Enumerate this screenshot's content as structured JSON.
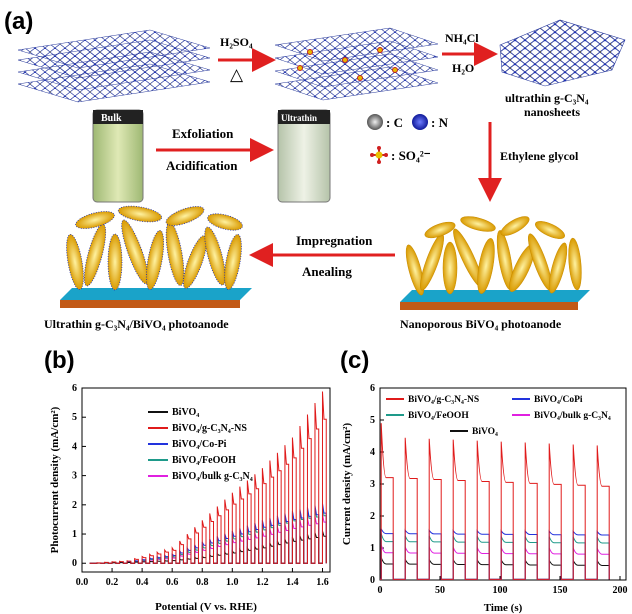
{
  "figure": {
    "panel_a": {
      "label": "(a)",
      "step1_reagent": "H₂SO₄",
      "step1_condition": "△",
      "step2_reagent_1": "NH₄Cl",
      "step2_reagent_2": "H₂O",
      "nanosheet_caption_1": "ultrathin g-C₃N₄",
      "nanosheet_caption_2": "nanosheets",
      "vial_bulk_label": "Bulk",
      "vial_ultrathin_label": "Ultrathin",
      "exfoliation_label": "Exfoliation",
      "acidification_label": "Acidification",
      "legend_c": ": C",
      "legend_n": ": N",
      "legend_so4": ": SO₄²⁻",
      "ethylene_glycol": "Ethylene glycol",
      "impregnation": "Impregnation",
      "anealing": "Anealing",
      "caption_left": "Ultrathin g-C₃N₄/BiVO₄ photoanode",
      "caption_right": "Nanoporous BiVO₄ photoanode"
    },
    "panel_b": {
      "label": "(b)"
    },
    "panel_c": {
      "label": "(c)"
    }
  },
  "chart_data": [
    {
      "type": "line",
      "panel": "(b)",
      "xlabel": "Potential (V vs. RHE)",
      "ylabel": "Photocurrent density (mA/cm²)",
      "xlim": [
        0.0,
        1.65
      ],
      "ylim": [
        -0.3,
        6
      ],
      "xticks": [
        "0.0",
        "0.2",
        "0.4",
        "0.6",
        "0.8",
        "1.0",
        "1.2",
        "1.4",
        "1.6"
      ],
      "yticks": [
        "0",
        "1",
        "2",
        "3",
        "4",
        "5",
        "6"
      ],
      "chopped_light": true,
      "legend_position": "top-left",
      "series": [
        {
          "name": "BiVO₄",
          "color": "#111111",
          "light": [
            [
              0.05,
              0
            ],
            [
              0.3,
              0.03
            ],
            [
              0.6,
              0.1
            ],
            [
              0.8,
              0.22
            ],
            [
              1.0,
              0.4
            ],
            [
              1.2,
              0.6
            ],
            [
              1.4,
              0.85
            ],
            [
              1.6,
              1.05
            ]
          ]
        },
        {
          "name": "BiVO₄/g-C₃N₄-NS",
          "color": "#e01b1b",
          "light": [
            [
              0.05,
              0
            ],
            [
              0.3,
              0.08
            ],
            [
              0.6,
              0.5
            ],
            [
              0.8,
              1.4
            ],
            [
              1.0,
              2.3
            ],
            [
              1.2,
              3.1
            ],
            [
              1.4,
              4.1
            ],
            [
              1.6,
              5.6
            ]
          ]
        },
        {
          "name": "BiVO₄/Co-Pi",
          "color": "#2233dd",
          "light": [
            [
              0.05,
              0
            ],
            [
              0.3,
              0.05
            ],
            [
              0.6,
              0.3
            ],
            [
              0.8,
              0.7
            ],
            [
              1.0,
              1.05
            ],
            [
              1.2,
              1.4
            ],
            [
              1.4,
              1.7
            ],
            [
              1.6,
              1.95
            ]
          ]
        },
        {
          "name": "BiVO₄/FeOOH",
          "color": "#1e9a8a",
          "light": [
            [
              0.05,
              0
            ],
            [
              0.3,
              0.04
            ],
            [
              0.6,
              0.25
            ],
            [
              0.8,
              0.6
            ],
            [
              1.0,
              0.95
            ],
            [
              1.2,
              1.3
            ],
            [
              1.4,
              1.65
            ],
            [
              1.6,
              1.85
            ]
          ]
        },
        {
          "name": "BiVO₄/bulk g-C₃N₄",
          "color": "#e020e0",
          "light": [
            [
              0.05,
              0
            ],
            [
              0.3,
              0.04
            ],
            [
              0.6,
              0.2
            ],
            [
              0.8,
              0.5
            ],
            [
              1.0,
              0.8
            ],
            [
              1.2,
              1.05
            ],
            [
              1.4,
              1.35
            ],
            [
              1.6,
              1.6
            ]
          ]
        }
      ]
    },
    {
      "type": "line",
      "panel": "(c)",
      "xlabel": "Time (s)",
      "ylabel": "Current density (mA/cm²)",
      "xlim": [
        0,
        205
      ],
      "ylim": [
        0,
        6
      ],
      "xticks": [
        "0",
        "50",
        "100",
        "150",
        "200"
      ],
      "yticks": [
        "0",
        "1",
        "2",
        "3",
        "4",
        "5",
        "6"
      ],
      "chopped_light": true,
      "period_s": 20,
      "legend_position": "top",
      "series": [
        {
          "name": "BiVO₄/g-C₃N₄-NS",
          "color": "#e01b1b",
          "spike": 4.9,
          "steady": 3.2,
          "steady_end": 2.9
        },
        {
          "name": "BiVO₄/CoPi",
          "color": "#2233dd",
          "spike": 1.6,
          "steady": 1.45,
          "steady_end": 1.4
        },
        {
          "name": "BiVO₄/FeOOH",
          "color": "#1e9a8a",
          "spike": 1.45,
          "steady": 1.2,
          "steady_end": 1.15
        },
        {
          "name": "BiVO₄/bulk g-C₃N₄",
          "color": "#e020e0",
          "spike": 1.1,
          "steady": 0.85,
          "steady_end": 0.8
        },
        {
          "name": "BiVO₄",
          "color": "#111111",
          "spike": 0.7,
          "steady": 0.5,
          "steady_end": 0.45
        }
      ]
    }
  ]
}
